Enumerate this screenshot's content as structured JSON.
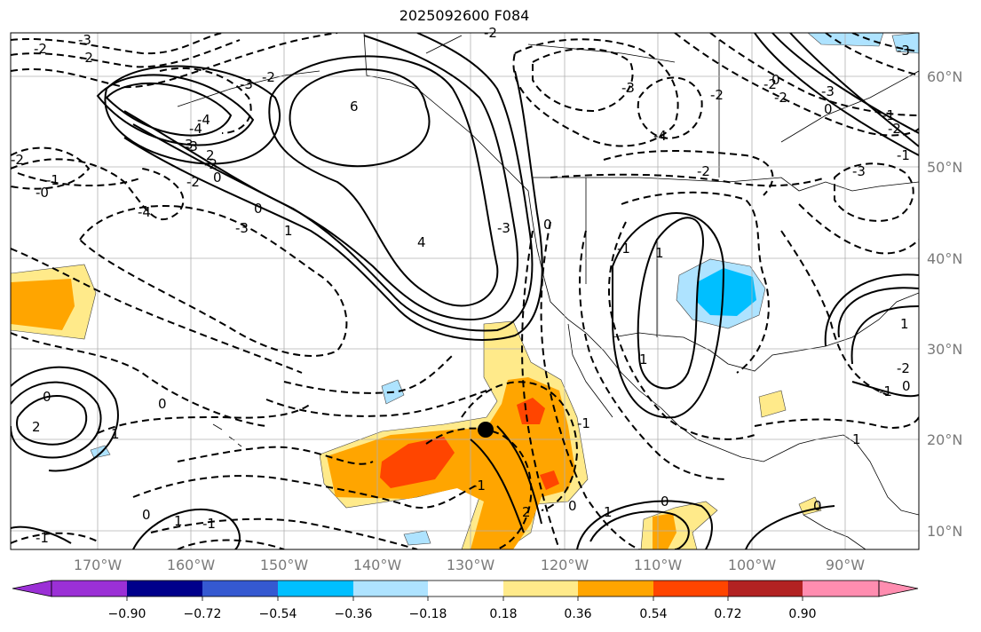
{
  "title": "2025092600 F084",
  "map": {
    "lon_labels": [
      "170°W",
      "160°W",
      "150°W",
      "140°W",
      "130°W",
      "120°W",
      "110°W",
      "100°W",
      "90°W"
    ],
    "lat_labels": [
      "60°N",
      "50°N",
      "40°N",
      "30°N",
      "20°N",
      "10°N"
    ],
    "contour_labels": [
      "-3",
      "-2",
      "-2",
      "-4",
      "-3",
      "3",
      "-2",
      "-3",
      "-4",
      "-2",
      "2",
      "0",
      "1",
      "-2",
      "-0",
      "-1",
      "0",
      "-4",
      "-3",
      "0",
      "1",
      "6",
      "4",
      "-3",
      "-2",
      "-2",
      "-3",
      "-4",
      "-2",
      "-3",
      "-2",
      "-3",
      "-2",
      "0",
      "-1",
      "-2",
      "-1",
      "0",
      "-2",
      "-3",
      "-1",
      "1",
      "1",
      "0",
      "0",
      "2",
      "-1",
      "-1",
      "0",
      "-1",
      "1",
      "0",
      "1",
      "2",
      "1",
      "1",
      "0",
      "-1",
      "0",
      "-1",
      "-2",
      "0"
    ],
    "marker": "storm-center"
  },
  "colorbar": {
    "ticks": [
      "−0.90",
      "−0.72",
      "−0.54",
      "−0.36",
      "−0.18",
      "0.18",
      "0.36",
      "0.54",
      "0.72",
      "0.90"
    ],
    "colors": [
      "#9b30d6",
      "#00008b",
      "#3559d1",
      "#00bfff",
      "#aee3ff",
      "#ffffff",
      "#ffea8a",
      "#ffa500",
      "#ff4500",
      "#b22222",
      "#ff8db0"
    ]
  },
  "chart_data": {
    "type": "heatmap",
    "title": "2025092600 F084",
    "region": "North Pacific / North America",
    "lon_range": [
      -180,
      -80
    ],
    "lat_range": [
      8,
      66
    ],
    "levels": [
      -0.9,
      -0.72,
      -0.54,
      -0.36,
      -0.18,
      0.18,
      0.36,
      0.54,
      0.72,
      0.9
    ],
    "contour_values": [
      -4,
      -3,
      -2,
      -1,
      0,
      1,
      2,
      3,
      4,
      6
    ]
  }
}
